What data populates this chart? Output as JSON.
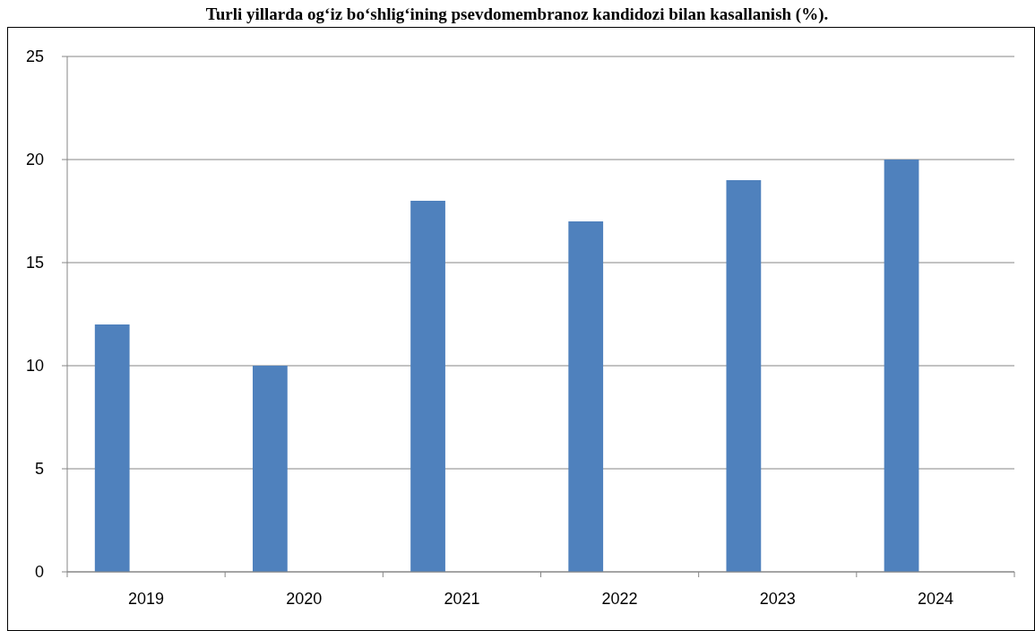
{
  "chart_data": {
    "type": "bar",
    "title": "Turli yillarda og‘iz bo‘shlig‘ining psevdomembranoz kandidozi bilan kasallanish (%).",
    "categories": [
      "2019",
      "2020",
      "2021",
      "2022",
      "2023",
      "2024"
    ],
    "values": [
      12,
      10,
      18,
      17,
      19,
      20
    ],
    "color": "#4f81bd",
    "ylim": [
      0,
      25
    ],
    "yticks": [
      0,
      5,
      10,
      15,
      20,
      25
    ],
    "grid": "y"
  }
}
